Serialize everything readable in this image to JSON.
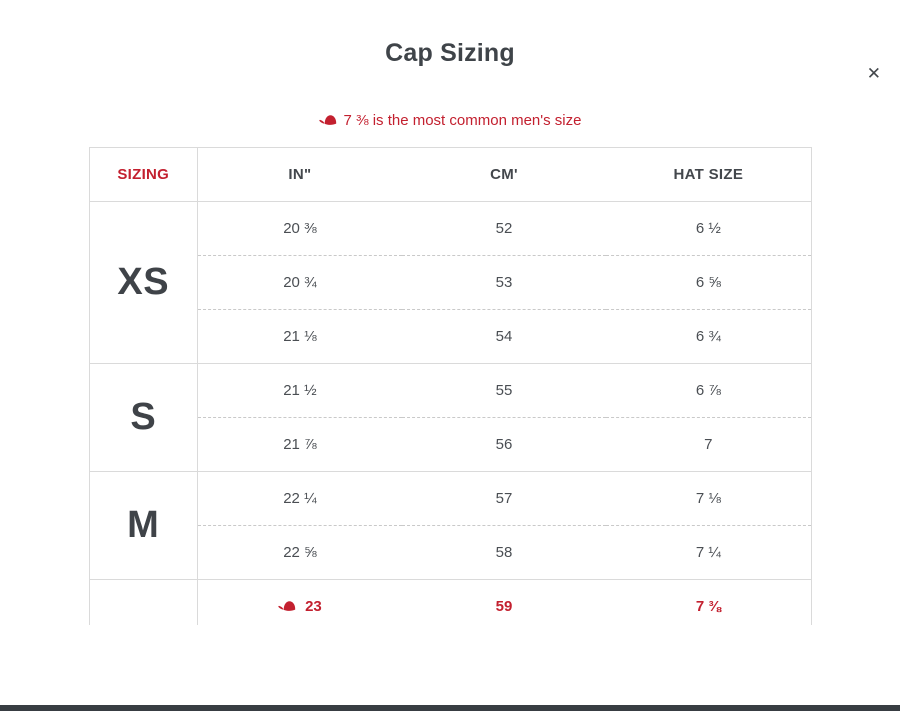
{
  "modal": {
    "title": "Cap Sizing",
    "close_glyph": "✕",
    "note": {
      "icon": "cap-icon",
      "text": "7 ⅜ is the most common men's size"
    }
  },
  "table": {
    "headers": [
      "SIZING",
      "IN\"",
      "CM'",
      "HAT SIZE"
    ],
    "groups": [
      {
        "label": "XS",
        "highlight": false,
        "rows": [
          [
            "20 ⅜",
            "52",
            "6 ½"
          ],
          [
            "20 ¾",
            "53",
            "6 ⅝"
          ],
          [
            "21 ⅛",
            "54",
            "6 ¾"
          ]
        ]
      },
      {
        "label": "S",
        "highlight": false,
        "rows": [
          [
            "21 ½",
            "55",
            "6 ⅞"
          ],
          [
            "21 ⅞",
            "56",
            "7"
          ]
        ]
      },
      {
        "label": "M",
        "highlight": false,
        "rows": [
          [
            "22 ¼",
            "57",
            "7 ⅛"
          ],
          [
            "22 ⅝",
            "58",
            "7 ¼"
          ]
        ]
      },
      {
        "label": "",
        "highlight": true,
        "rows": [
          [
            "23",
            "59",
            "7 ⅜"
          ]
        ]
      }
    ]
  },
  "colors": {
    "accent_red": "#c3202f",
    "text_dark": "#3f4449",
    "text_body": "#4a4e53",
    "border": "#dadada",
    "footer_bar": "#383d42"
  }
}
